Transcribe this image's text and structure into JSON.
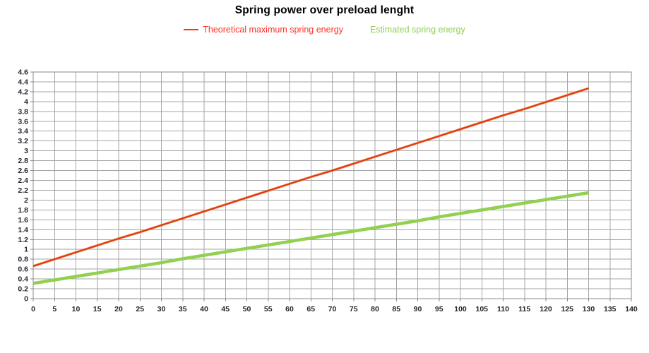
{
  "title": "Spring power over preload lenght",
  "legend": {
    "items": [
      {
        "label": "Theoretical maximum spring energy",
        "color": "#ff3226",
        "marker": "line"
      },
      {
        "label": "Estimated spring energy",
        "color": "#92d050",
        "marker": "none"
      }
    ]
  },
  "chart_data": {
    "type": "line",
    "title": "Spring power over preload lenght",
    "xlabel": "",
    "ylabel": "",
    "xlim": [
      0,
      140
    ],
    "ylim": [
      0,
      4.6
    ],
    "grid": "both",
    "legend_position": "top-center",
    "x_ticks": [
      0,
      5,
      10,
      15,
      20,
      25,
      30,
      35,
      40,
      45,
      50,
      55,
      60,
      65,
      70,
      75,
      80,
      85,
      90,
      95,
      100,
      105,
      110,
      115,
      120,
      125,
      130,
      135,
      140
    ],
    "y_ticks": [
      0,
      0.2,
      0.4,
      0.6,
      0.8,
      1,
      1.2,
      1.4,
      1.6,
      1.8,
      2,
      2.2,
      2.4,
      2.6,
      2.8,
      3,
      3.2,
      3.4,
      3.6,
      3.8,
      4,
      4.2,
      4.4,
      4.6
    ],
    "x": [
      0,
      5,
      10,
      15,
      20,
      25,
      30,
      35,
      40,
      45,
      50,
      55,
      60,
      65,
      70,
      75,
      80,
      85,
      90,
      95,
      100,
      105,
      110,
      115,
      120,
      125,
      130
    ],
    "series": [
      {
        "name": "Theoretical maximum spring energy",
        "color": "#dd2f1b",
        "halo_color": "#ed7d31",
        "line_width": 1.6,
        "halo_width": 3.2,
        "values": [
          0.66,
          0.8,
          0.94,
          1.08,
          1.22,
          1.35,
          1.49,
          1.63,
          1.77,
          1.91,
          2.05,
          2.19,
          2.33,
          2.47,
          2.6,
          2.74,
          2.88,
          3.02,
          3.16,
          3.3,
          3.44,
          3.58,
          3.72,
          3.85,
          3.99,
          4.13,
          4.27
        ]
      },
      {
        "name": "Estimated spring energy",
        "color": "#92d050",
        "line_width": 4.5,
        "values": [
          0.31,
          0.38,
          0.45,
          0.52,
          0.59,
          0.66,
          0.73,
          0.81,
          0.88,
          0.95,
          1.02,
          1.09,
          1.16,
          1.23,
          1.3,
          1.37,
          1.44,
          1.51,
          1.58,
          1.66,
          1.73,
          1.8,
          1.87,
          1.94,
          2.01,
          2.08,
          2.15
        ]
      }
    ],
    "colors": {
      "grid": "#a6a6a6",
      "border": "#8a8a8a",
      "tick_label": "#25252e",
      "title": "#000000",
      "background": "#ffffff"
    }
  }
}
